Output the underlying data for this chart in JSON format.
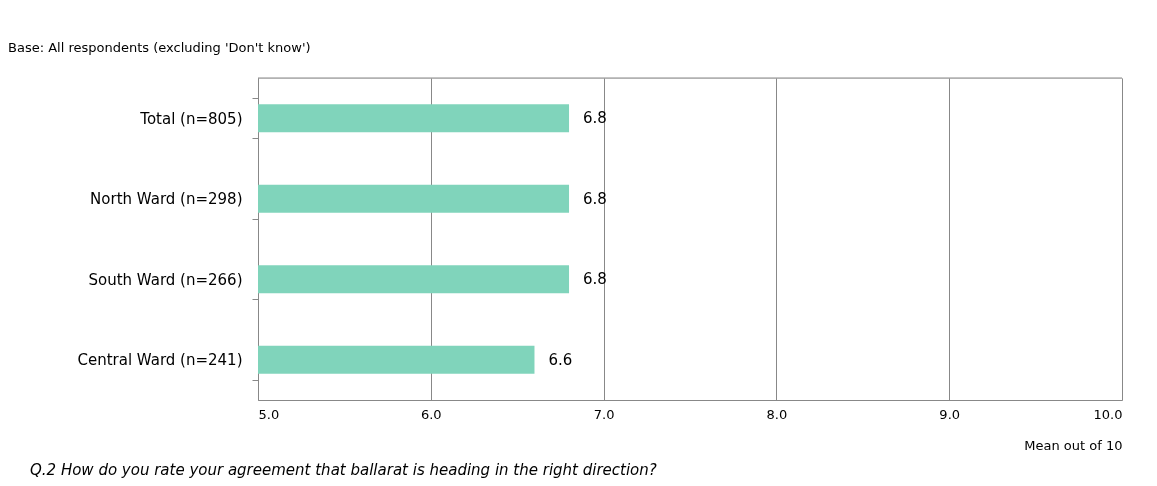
{
  "chart_data": {
    "type": "bar",
    "orientation": "horizontal",
    "categories": [
      "Total (n=805)",
      "North Ward (n=298)",
      "South Ward (n=266)",
      "Central Ward (n=241)"
    ],
    "values": [
      6.8,
      6.8,
      6.8,
      6.6
    ],
    "color": "#80d4bb",
    "data_labels": true,
    "xlim": [
      5,
      10
    ],
    "xticks": [
      {
        "value": 5,
        "label": "5.0"
      },
      {
        "value": 6,
        "label": "6.0"
      },
      {
        "value": 7,
        "label": "7.0"
      },
      {
        "value": 8,
        "label": "8.0"
      },
      {
        "value": 9,
        "label": "9.0"
      },
      {
        "value": 10,
        "label": "10.0"
      }
    ],
    "xlabel": "Mean out of 10",
    "grid": "x",
    "annotations": [
      "Base: All respondents (excluding 'Don't know')",
      "Q.2 How do you rate your agreement that ballarat is heading in the right direction?"
    ]
  }
}
